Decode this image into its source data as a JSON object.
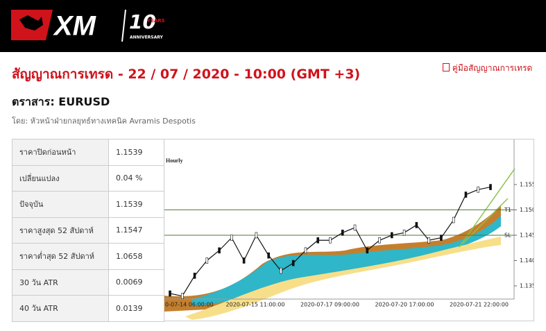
{
  "logo": {
    "brand": "XM",
    "badge": "10",
    "years": "YEARS",
    "anniversary": "ANNIVERSARY"
  },
  "header": {
    "title": "สัญญาณการเทรด - 22 / 07 / 2020 - 10:00 (GMT +3)",
    "guide_link": "คู่มือสัญญาณการเทรด",
    "instrument": "ตราสาร: EURUSD",
    "author": "โดย: หัวหน้าฝ่ายกลยุทธ์ทางเทคนิค Avramis Despotis"
  },
  "table": {
    "rows": [
      [
        "ราคาปิดก่อนหน้า",
        "1.1539"
      ],
      [
        "เปลี่ยนแปลง",
        "0.04 %"
      ],
      [
        "ปัจจุบัน",
        "1.1539"
      ],
      [
        "ราคาสูงสุด 52 สัปดาห์",
        "1.1547"
      ],
      [
        "ราคาต่ำสุด 52 สัปดาห์",
        "1.0658"
      ],
      [
        "30 วัน ATR",
        "0.0069"
      ],
      [
        "40 วัน ATR",
        "0.0139"
      ]
    ]
  },
  "chart": {
    "type": "line",
    "title": "Hourly",
    "ylim": [
      1.1324,
      1.1632
    ],
    "yticks": [
      {
        "value": 1.155,
        "label": "1.1550"
      },
      {
        "value": 1.15,
        "label": "1.1500"
      },
      {
        "value": 1.145,
        "label": "1.1450"
      },
      {
        "value": 1.14,
        "label": "1.1400"
      },
      {
        "value": 1.135,
        "label": "1.1350"
      }
    ],
    "levels": [
      {
        "name": "T1",
        "value": 1.15
      },
      {
        "name": "SL",
        "value": 1.145
      }
    ],
    "xlabels": [
      "0-07-14 06:00:00",
      "2020-07-15 11:00:00",
      "2020-07-17 09:00:00",
      "2020-07-20 17:00:00",
      "2020-07-21 22:00:00"
    ],
    "values": [
      1.1335,
      1.133,
      1.137,
      1.14,
      1.142,
      1.1445,
      1.14,
      1.145,
      1.141,
      1.138,
      1.1395,
      1.142,
      1.144,
      1.144,
      1.1455,
      1.1465,
      1.142,
      1.144,
      1.145,
      1.1455,
      1.147,
      1.144,
      1.1445,
      1.148,
      1.153,
      1.154,
      1.1545
    ],
    "color": "#111111"
  }
}
